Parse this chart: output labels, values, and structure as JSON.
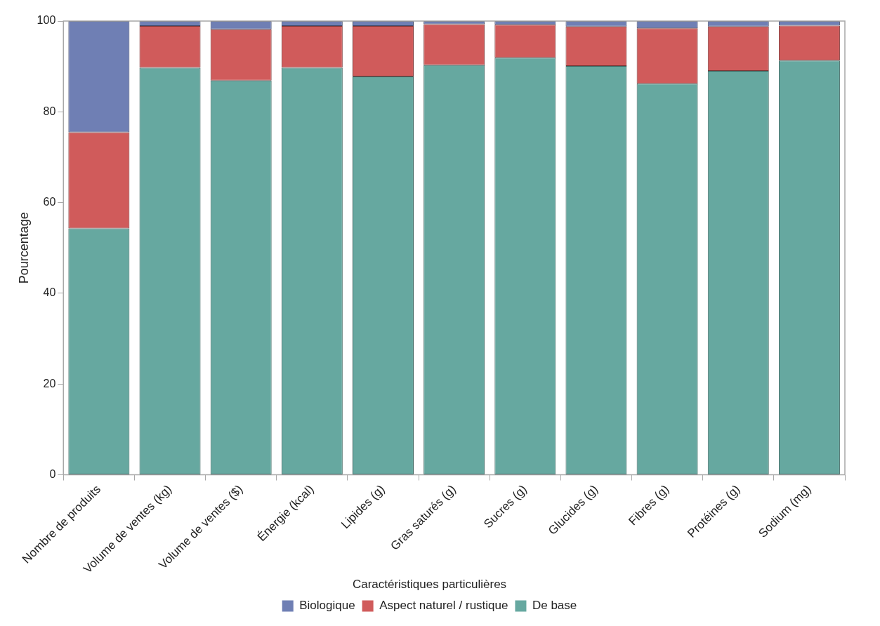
{
  "chart_data": {
    "type": "bar",
    "stacked": true,
    "ylabel": "Pourcentage",
    "legend_title": "Caractéristiques particulières",
    "legend": "bottom",
    "grid": false,
    "categories": [
      "Nombre de produits",
      "Volume de ventes (kg)",
      "Volume de ventes ($)",
      "Énergie (kcal)",
      "Lipides (g)",
      "Gras saturés (g)",
      "Sucres (g)",
      "Glucides (g)",
      "Fibres (g)",
      "Protéines (g)",
      "Sodium (mg)"
    ],
    "ylim": [
      0,
      100
    ],
    "yticks": [
      0,
      20,
      40,
      60,
      80,
      100
    ],
    "series": [
      {
        "name": "De base",
        "color": "#66a8a0",
        "values": [
          54.3,
          89.7,
          86.9,
          89.7,
          87.8,
          90.3,
          91.9,
          90.1,
          86.2,
          89.0,
          91.3
        ]
      },
      {
        "name": "Aspect naturel / rustique",
        "color": "#d05b5b",
        "values": [
          21.2,
          9.2,
          11.3,
          9.2,
          11.1,
          9.0,
          7.3,
          8.7,
          12.2,
          9.8,
          7.7
        ]
      },
      {
        "name": "Biologique",
        "color": "#6f7fb4",
        "values": [
          24.5,
          1.1,
          1.8,
          1.1,
          1.1,
          0.7,
          0.8,
          1.2,
          1.6,
          1.2,
          1.0
        ]
      }
    ]
  }
}
